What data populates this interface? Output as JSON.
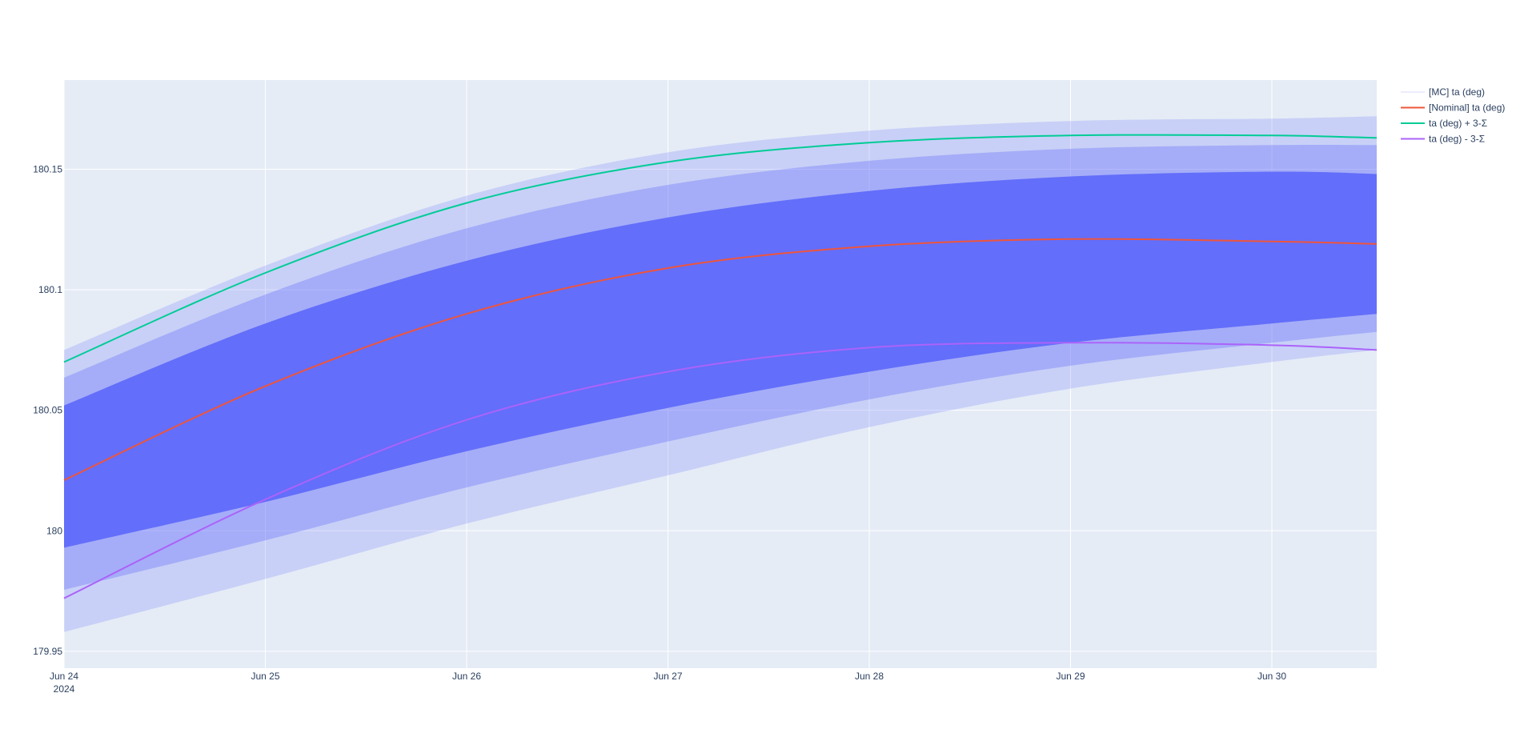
{
  "colors": {
    "plot_bg": "#e5ecf6",
    "grid": "#ffffff",
    "mc": "#636efa",
    "nominal": "#ef553b",
    "plus": "#00cc96",
    "minus": "#ab63fa",
    "text": "#2a3f5f"
  },
  "chart_data": {
    "type": "line",
    "title": "",
    "xlabel": "",
    "ylabel": "",
    "grid": true,
    "legend_position": "top-right, outside plot",
    "x_range": [
      "2024-06-24T00:00",
      "2024-06-30T12:30"
    ],
    "y_range": [
      179.943,
      180.187
    ],
    "x_ticks": [
      {
        "label": "Jun 24",
        "sublabel": "2024",
        "date": "2024-06-24T00:00"
      },
      {
        "label": "Jun 25",
        "sublabel": "",
        "date": "2024-06-25T00:00"
      },
      {
        "label": "Jun 26",
        "sublabel": "",
        "date": "2024-06-26T00:00"
      },
      {
        "label": "Jun 27",
        "sublabel": "",
        "date": "2024-06-27T00:00"
      },
      {
        "label": "Jun 28",
        "sublabel": "",
        "date": "2024-06-28T00:00"
      },
      {
        "label": "Jun 29",
        "sublabel": "",
        "date": "2024-06-29T00:00"
      },
      {
        "label": "Jun 30",
        "sublabel": "",
        "date": "2024-06-30T00:00"
      }
    ],
    "y_ticks": [
      {
        "label": "179.95",
        "value": 179.95
      },
      {
        "label": "180",
        "value": 180.0
      },
      {
        "label": "180.05",
        "value": 180.05
      },
      {
        "label": "180.1",
        "value": 180.1
      },
      {
        "label": "180.15",
        "value": 180.15
      }
    ],
    "mc_band": {
      "name": "[MC] ta (deg)",
      "x": [
        "2024-06-24T00:00",
        "2024-06-25T00:00",
        "2024-06-26T00:00",
        "2024-06-27T00:00",
        "2024-06-28T00:00",
        "2024-06-29T00:00",
        "2024-06-30T00:00",
        "2024-06-30T12:30"
      ],
      "outer_upper": [
        180.075,
        180.11,
        180.139,
        180.157,
        180.166,
        180.17,
        180.171,
        180.172
      ],
      "inner_upper": [
        180.052,
        180.086,
        180.112,
        180.13,
        180.141,
        180.147,
        180.149,
        180.148
      ],
      "inner_lower": [
        179.993,
        180.012,
        180.033,
        180.051,
        180.066,
        180.078,
        180.086,
        180.09
      ],
      "outer_lower": [
        179.958,
        179.98,
        180.003,
        180.023,
        180.043,
        180.059,
        180.07,
        180.075
      ]
    },
    "series": [
      {
        "name": "[Nominal] ta (deg)",
        "x": [
          "2024-06-24T00:00",
          "2024-06-25T00:00",
          "2024-06-26T00:00",
          "2024-06-27T00:00",
          "2024-06-28T00:00",
          "2024-06-29T00:00",
          "2024-06-30T00:00",
          "2024-06-30T12:30"
        ],
        "y": [
          180.021,
          180.06,
          180.09,
          180.109,
          180.118,
          180.121,
          180.12,
          180.119
        ]
      },
      {
        "name": "ta (deg) + 3-Σ",
        "x": [
          "2024-06-24T00:00",
          "2024-06-25T00:00",
          "2024-06-26T00:00",
          "2024-06-27T00:00",
          "2024-06-28T00:00",
          "2024-06-29T00:00",
          "2024-06-30T00:00",
          "2024-06-30T12:30"
        ],
        "y": [
          180.07,
          180.107,
          180.136,
          180.153,
          180.161,
          180.164,
          180.164,
          180.163
        ]
      },
      {
        "name": "ta (deg) - 3-Σ",
        "x": [
          "2024-06-24T00:00",
          "2024-06-25T00:00",
          "2024-06-26T00:00",
          "2024-06-27T00:00",
          "2024-06-28T00:00",
          "2024-06-29T00:00",
          "2024-06-30T00:00",
          "2024-06-30T12:30"
        ],
        "y": [
          179.972,
          180.013,
          180.046,
          180.066,
          180.076,
          180.078,
          180.077,
          180.075
        ]
      }
    ]
  },
  "legend": [
    {
      "label": "[MC] ta (deg)",
      "color_key": "mc_legend"
    },
    {
      "label": "[Nominal] ta (deg)",
      "color_key": "nominal"
    },
    {
      "label": "ta (deg) + 3-Σ",
      "color_key": "plus"
    },
    {
      "label": "ta (deg) - 3-Σ",
      "color_key": "minus"
    }
  ]
}
